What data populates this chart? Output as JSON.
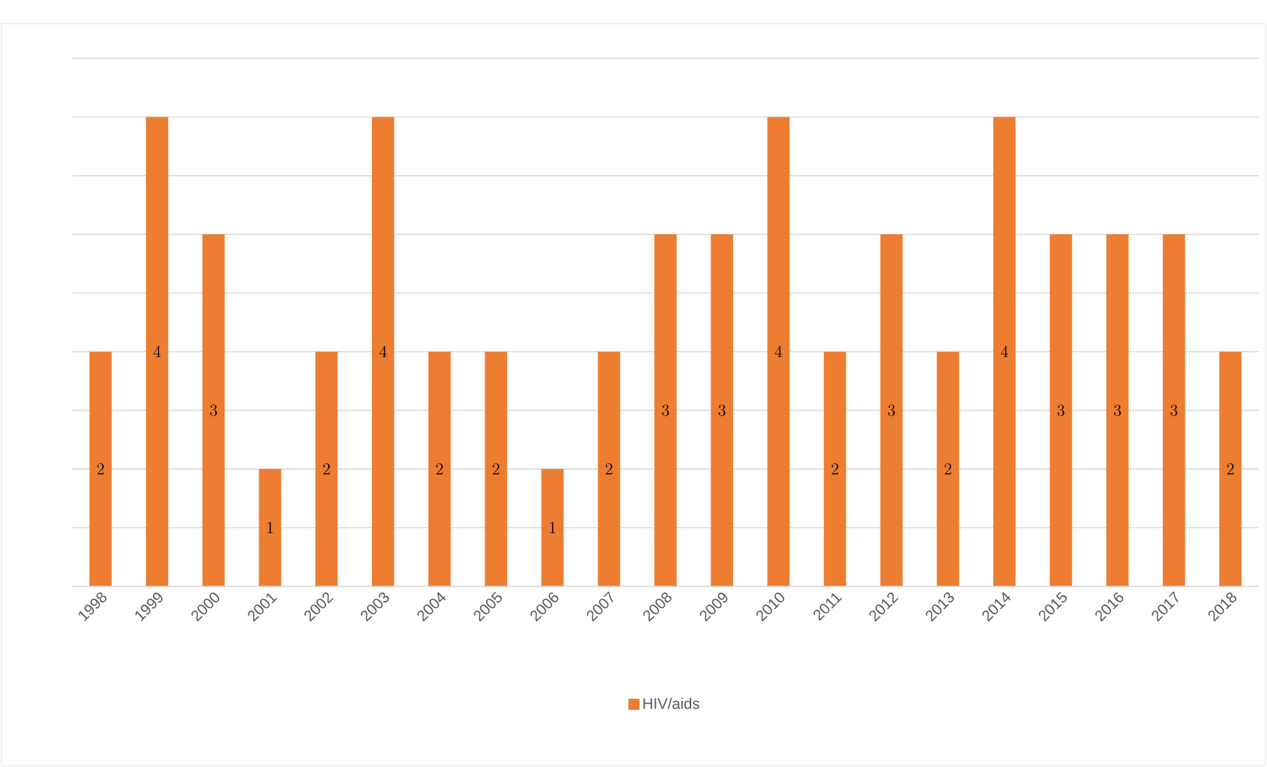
{
  "chart_data": {
    "type": "bar",
    "categories": [
      "1998",
      "1999",
      "2000",
      "2001",
      "2002",
      "2003",
      "2004",
      "2005",
      "2006",
      "2007",
      "2008",
      "2009",
      "2010",
      "2011",
      "2012",
      "2013",
      "2014",
      "2015",
      "2016",
      "2017",
      "2018"
    ],
    "series": [
      {
        "name": "HIV/aids",
        "color": "#ed7d31",
        "values": [
          2,
          4,
          3,
          1,
          2,
          4,
          2,
          2,
          1,
          2,
          3,
          3,
          4,
          2,
          3,
          2,
          4,
          3,
          3,
          3,
          2
        ]
      }
    ],
    "ylim": [
      0,
      4.5
    ],
    "yticks": [
      {
        "value": 0,
        "label": null
      },
      {
        "value": 0.5,
        "label": null
      },
      {
        "value": 1,
        "label": null
      },
      {
        "value": 1.5,
        "label": null
      },
      {
        "value": 2,
        "label": null
      },
      {
        "value": 2.5,
        "label": null
      },
      {
        "value": 3,
        "label": null
      },
      {
        "value": 3.5,
        "label": null
      },
      {
        "value": 4,
        "label": null
      },
      {
        "value": 4.5,
        "label": null
      }
    ],
    "tick_labels": "x",
    "grid": "y",
    "data_labels": true,
    "legend": "bottom"
  }
}
